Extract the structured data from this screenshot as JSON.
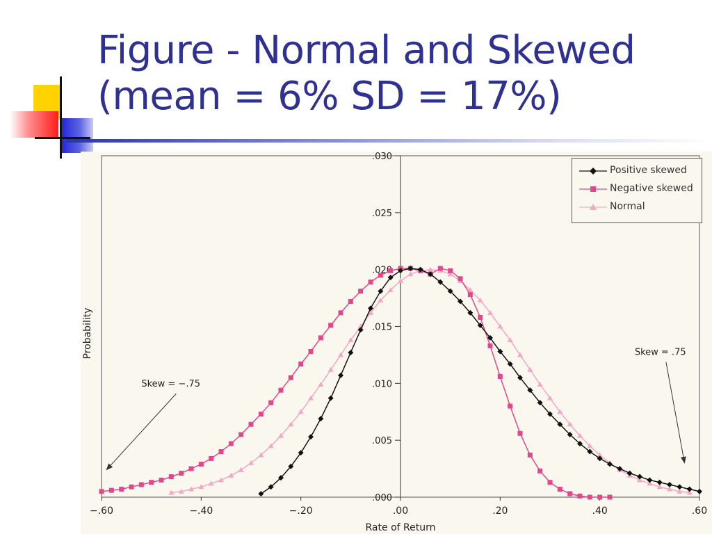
{
  "slide": {
    "title_line1": "Figure - Normal and Skewed",
    "title_line2": "(mean = 6% SD = 17%)"
  },
  "colors": {
    "title": "#2e3192",
    "positive": "#111111",
    "negative": "#e0488c",
    "normal": "#f2a7c4",
    "plot_background": "#faf8ee"
  },
  "chart_data": {
    "type": "line",
    "xlabel": "Rate of Return",
    "ylabel": "Probability",
    "xlim": [
      -0.6,
      0.6
    ],
    "ylim": [
      0,
      0.03
    ],
    "x_ticks": [
      -0.6,
      -0.4,
      -0.2,
      0.0,
      0.2,
      0.4,
      0.6
    ],
    "x_tick_labels": [
      "−.60",
      "−.40",
      "−.20",
      ".00",
      ".20",
      ".40",
      ".60"
    ],
    "y_ticks": [
      0.0,
      0.005,
      0.01,
      0.015,
      0.02,
      0.025,
      0.03
    ],
    "y_tick_labels": [
      ".000",
      ".005",
      ".010",
      ".015",
      ".020",
      ".025",
      ".030"
    ],
    "grid": false,
    "legend_position": "top-right",
    "series": [
      {
        "name": "Positive skewed",
        "marker": "diamond",
        "x": [
          -0.28,
          -0.26,
          -0.24,
          -0.22,
          -0.2,
          -0.18,
          -0.16,
          -0.14,
          -0.12,
          -0.1,
          -0.08,
          -0.06,
          -0.04,
          -0.02,
          0.0,
          0.02,
          0.04,
          0.06,
          0.08,
          0.1,
          0.12,
          0.14,
          0.16,
          0.18,
          0.2,
          0.22,
          0.24,
          0.26,
          0.28,
          0.3,
          0.32,
          0.34,
          0.36,
          0.38,
          0.4,
          0.42,
          0.44,
          0.46,
          0.48,
          0.5,
          0.52,
          0.54,
          0.56,
          0.58,
          0.6
        ],
        "y": [
          0.0003,
          0.0009,
          0.0017,
          0.0027,
          0.0039,
          0.0053,
          0.0069,
          0.0087,
          0.0107,
          0.0127,
          0.0147,
          0.0166,
          0.0181,
          0.0193,
          0.0199,
          0.0201,
          0.02,
          0.0196,
          0.0189,
          0.0181,
          0.0172,
          0.0162,
          0.0151,
          0.014,
          0.0128,
          0.0117,
          0.0105,
          0.0094,
          0.0083,
          0.0073,
          0.0064,
          0.0055,
          0.0047,
          0.004,
          0.0034,
          0.0029,
          0.0025,
          0.0021,
          0.0018,
          0.0015,
          0.0013,
          0.0011,
          0.0009,
          0.0007,
          0.0005
        ]
      },
      {
        "name": "Negative skewed",
        "marker": "square",
        "x": [
          -0.6,
          -0.58,
          -0.56,
          -0.54,
          -0.52,
          -0.5,
          -0.48,
          -0.46,
          -0.44,
          -0.42,
          -0.4,
          -0.38,
          -0.36,
          -0.34,
          -0.32,
          -0.3,
          -0.28,
          -0.26,
          -0.24,
          -0.22,
          -0.2,
          -0.18,
          -0.16,
          -0.14,
          -0.12,
          -0.1,
          -0.08,
          -0.06,
          -0.04,
          -0.02,
          0.0,
          0.02,
          0.04,
          0.06,
          0.08,
          0.1,
          0.12,
          0.14,
          0.16,
          0.18,
          0.2,
          0.22,
          0.24,
          0.26,
          0.28,
          0.3,
          0.32,
          0.34,
          0.36,
          0.38,
          0.4,
          0.42
        ],
        "y": [
          0.0005,
          0.0006,
          0.0007,
          0.0009,
          0.0011,
          0.0013,
          0.0015,
          0.0018,
          0.0021,
          0.0025,
          0.0029,
          0.0034,
          0.004,
          0.0047,
          0.0055,
          0.0064,
          0.0073,
          0.0083,
          0.0094,
          0.0105,
          0.0117,
          0.0128,
          0.014,
          0.0151,
          0.0162,
          0.0172,
          0.0181,
          0.0189,
          0.0195,
          0.0199,
          0.0201,
          0.0201,
          0.0199,
          0.0196,
          0.0201,
          0.0199,
          0.0192,
          0.0178,
          0.0158,
          0.0133,
          0.0106,
          0.008,
          0.0056,
          0.0037,
          0.0023,
          0.0013,
          0.0007,
          0.0003,
          0.0001,
          0.0,
          0.0,
          0.0
        ]
      },
      {
        "name": "Normal",
        "marker": "triangle",
        "x": [
          -0.46,
          -0.44,
          -0.42,
          -0.4,
          -0.38,
          -0.36,
          -0.34,
          -0.32,
          -0.3,
          -0.28,
          -0.26,
          -0.24,
          -0.22,
          -0.2,
          -0.18,
          -0.16,
          -0.14,
          -0.12,
          -0.1,
          -0.08,
          -0.06,
          -0.04,
          -0.02,
          0.0,
          0.02,
          0.04,
          0.06,
          0.08,
          0.1,
          0.12,
          0.14,
          0.16,
          0.18,
          0.2,
          0.22,
          0.24,
          0.26,
          0.28,
          0.3,
          0.32,
          0.34,
          0.36,
          0.38,
          0.4,
          0.42,
          0.44,
          0.46,
          0.48,
          0.5,
          0.52,
          0.54,
          0.56,
          0.58
        ],
        "y": [
          0.0004,
          0.0005,
          0.0007,
          0.0009,
          0.0012,
          0.0015,
          0.0019,
          0.0024,
          0.003,
          0.0037,
          0.0045,
          0.0054,
          0.0064,
          0.0075,
          0.0087,
          0.0099,
          0.0112,
          0.0125,
          0.0138,
          0.015,
          0.0162,
          0.0173,
          0.0182,
          0.019,
          0.0196,
          0.0199,
          0.02,
          0.0199,
          0.0196,
          0.019,
          0.0182,
          0.0173,
          0.0162,
          0.015,
          0.0138,
          0.0125,
          0.0112,
          0.0099,
          0.0087,
          0.0075,
          0.0064,
          0.0054,
          0.0045,
          0.0037,
          0.003,
          0.0024,
          0.0019,
          0.0015,
          0.0012,
          0.0009,
          0.0007,
          0.0005,
          0.0004
        ]
      }
    ],
    "annotations": [
      {
        "text": "Skew = −.75",
        "x": -0.52,
        "y": 0.0097,
        "arrow_to": [
          -0.59,
          0.0024
        ]
      },
      {
        "text": "Skew = .75",
        "x": 0.47,
        "y": 0.0125,
        "arrow_to": [
          0.57,
          0.003
        ]
      }
    ]
  }
}
